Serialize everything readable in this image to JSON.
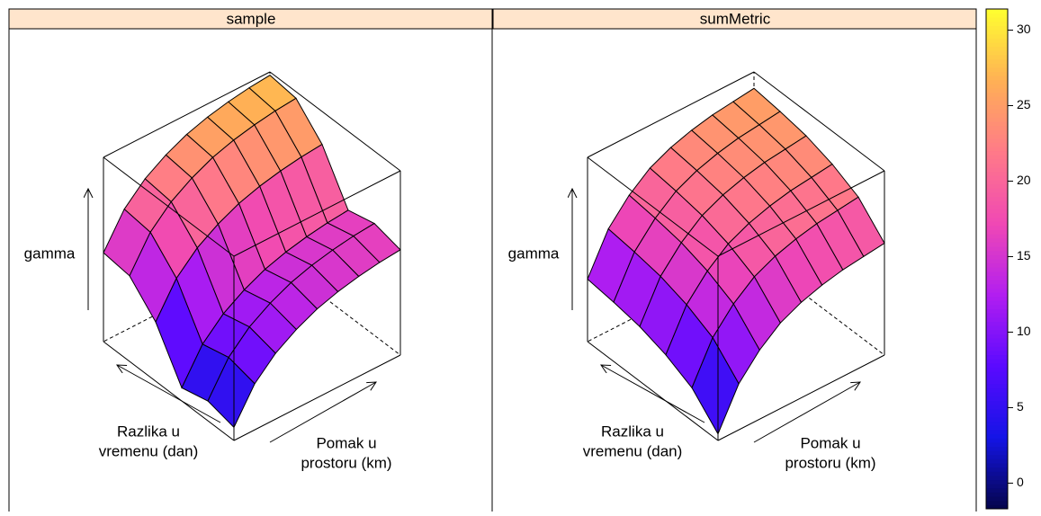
{
  "chart_data": [
    {
      "type": "wireframe",
      "title": "sample",
      "zlabel": "gamma",
      "ylabel": [
        "Razlika u",
        "vremenu (dan)"
      ],
      "xlabel": [
        "Pomak u",
        "prostoru (km)"
      ],
      "zlim": [
        0,
        28
      ],
      "z": [
        [
          2,
          7,
          10,
          12,
          13.5,
          14.5,
          15.2,
          15.7,
          16
        ],
        [
          3,
          8,
          11,
          13,
          14.5,
          15.5,
          16.2,
          16.7,
          17
        ],
        [
          2,
          7,
          10,
          12,
          13.5,
          14.5,
          15.2,
          15.7,
          16
        ],
        [
          9,
          14,
          17,
          19,
          20.5,
          21.5,
          22.2,
          22.7,
          23
        ],
        [
          13,
          18,
          21,
          23,
          24.5,
          25.5,
          26.2,
          26.7,
          27
        ],
        [
          13.5,
          18.5,
          21.5,
          23.5,
          25,
          26,
          26.7,
          27.2,
          27.5
        ]
      ]
    },
    {
      "type": "wireframe",
      "title": "sumMetric",
      "zlabel": "gamma",
      "ylabel": [
        "Razlika u",
        "vremenu (dan)"
      ],
      "xlabel": [
        "Pomak u",
        "prostoru (km)"
      ],
      "zlim": [
        0,
        28
      ],
      "z": [
        [
          1,
          7,
          10.5,
          13,
          14.5,
          15.5,
          16.2,
          16.6,
          17
        ],
        [
          5,
          11,
          14.5,
          17,
          18.5,
          19.5,
          20.2,
          20.6,
          21
        ],
        [
          7,
          13,
          16.5,
          19,
          20.5,
          21.5,
          22.2,
          22.6,
          23
        ],
        [
          8.3,
          14.3,
          17.8,
          20.3,
          21.8,
          22.8,
          23.5,
          23.9,
          24.3
        ],
        [
          9,
          15,
          18.5,
          21,
          22.5,
          23.5,
          24.2,
          24.6,
          25
        ],
        [
          9.5,
          15.5,
          19,
          21.5,
          23,
          24,
          24.7,
          25.1,
          25.5
        ]
      ]
    },
    {
      "type": "colorkey",
      "ylim": [
        -1.7,
        31.4
      ],
      "yticks": [
        0,
        5,
        10,
        15,
        20,
        25,
        30
      ],
      "colors": [
        "#05054a",
        "#1414e6",
        "#5a0aff",
        "#b21ef0",
        "#f048b4",
        "#ff7a88",
        "#ffb055",
        "#ffff30"
      ]
    }
  ]
}
